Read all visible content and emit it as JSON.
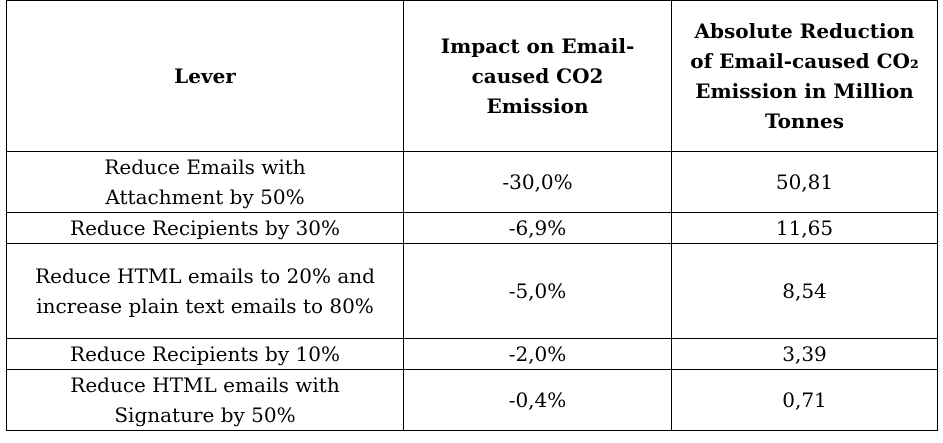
{
  "table": {
    "headers": {
      "lever": "Lever",
      "impact": "Impact on Email-caused CO2 Emission",
      "absolute": "Absolute Reduction of Email-caused CO₂ Emission in Million Tonnes"
    },
    "rows": [
      {
        "lever": "Reduce Emails with Attachment by 50%",
        "impact": "-30,0%",
        "absolute": "50,81"
      },
      {
        "lever": "Reduce Recipients by 30%",
        "impact": "-6,9%",
        "absolute": "11,65"
      },
      {
        "lever": "Reduce HTML emails to 20% and increase plain text emails to 80%",
        "impact": "-5,0%",
        "absolute": "8,54"
      },
      {
        "lever": "Reduce Recipients by 10%",
        "impact": "-2,0%",
        "absolute": "3,39"
      },
      {
        "lever": "Reduce HTML emails with Signature by 50%",
        "impact": "-0,4%",
        "absolute": "0,71"
      }
    ]
  }
}
